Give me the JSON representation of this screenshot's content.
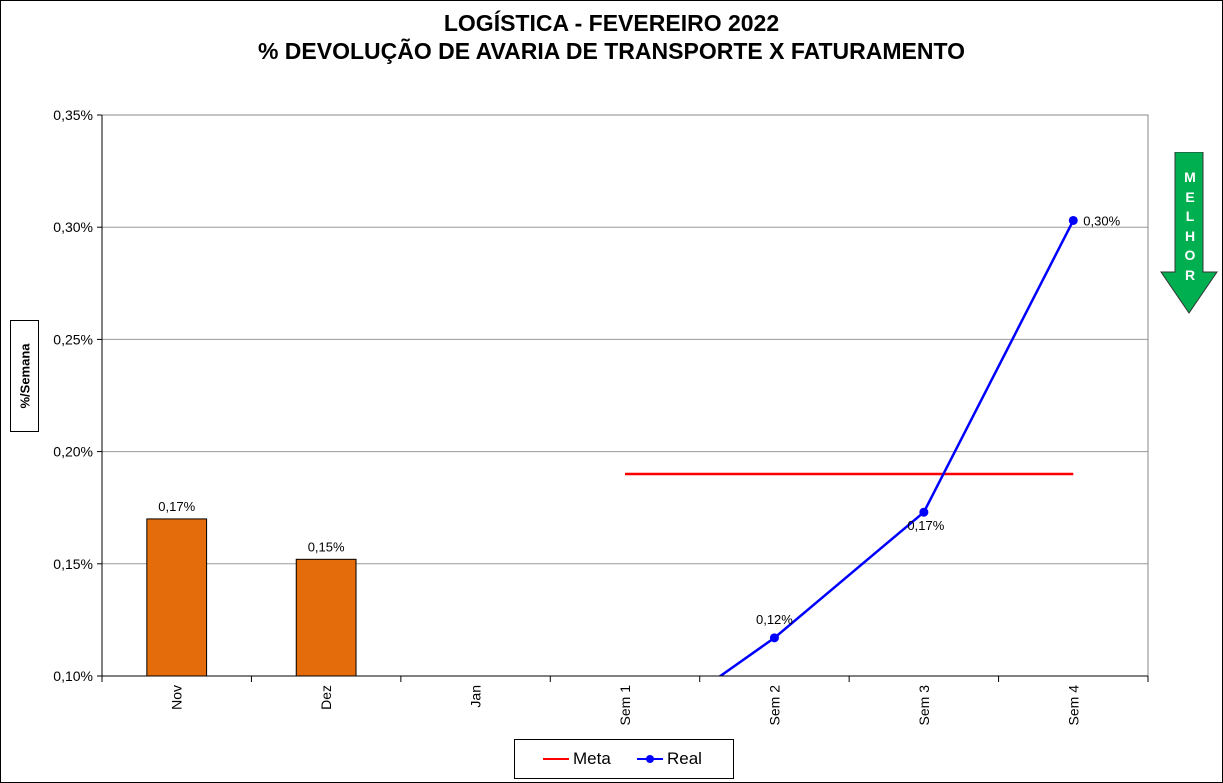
{
  "title_line1": "LOGÍSTICA - FEVEREIRO 2022",
  "title_line2": "% DEVOLUÇÃO DE AVARIA DE TRANSPORTE X FATURAMENTO",
  "indicator": {
    "text": "MELHOR",
    "direction": "down",
    "color": "#00B050"
  },
  "chart_data": {
    "type": "bar+line",
    "title": "LOGÍSTICA - FEVEREIRO 2022 / % DEVOLUÇÃO DE AVARIA DE TRANSPORTE X FATURAMENTO",
    "xlabel": "",
    "ylabel": "%/Semana",
    "categories": [
      "Nov",
      "Dez",
      "Jan",
      "Sem 1",
      "Sem 2",
      "Sem 3",
      "Sem 4"
    ],
    "ylim": [
      0.1,
      0.35
    ],
    "yticks": [
      "0,10%",
      "0,15%",
      "0,20%",
      "0,25%",
      "0,30%",
      "0,35%"
    ],
    "ytick_values": [
      0.1,
      0.15,
      0.2,
      0.25,
      0.3,
      0.35
    ],
    "grid": true,
    "legend_position": "bottom",
    "bars": {
      "color": "#E46C0A",
      "values": [
        0.17,
        0.152,
        null,
        null,
        null,
        null,
        null
      ],
      "labels": [
        "0,17%",
        "0,15%",
        "",
        "",
        "",
        "",
        ""
      ]
    },
    "series": [
      {
        "name": "Meta",
        "color": "#FF0000",
        "values": [
          null,
          null,
          null,
          0.19,
          0.19,
          0.19,
          0.19
        ]
      },
      {
        "name": "Real",
        "color": "#0000FF",
        "values": [
          null,
          null,
          null,
          0.07,
          0.117,
          0.173,
          0.303
        ],
        "labels": [
          "",
          "",
          "",
          "",
          "0,12%",
          "0,17%",
          "0,30%"
        ]
      }
    ]
  }
}
